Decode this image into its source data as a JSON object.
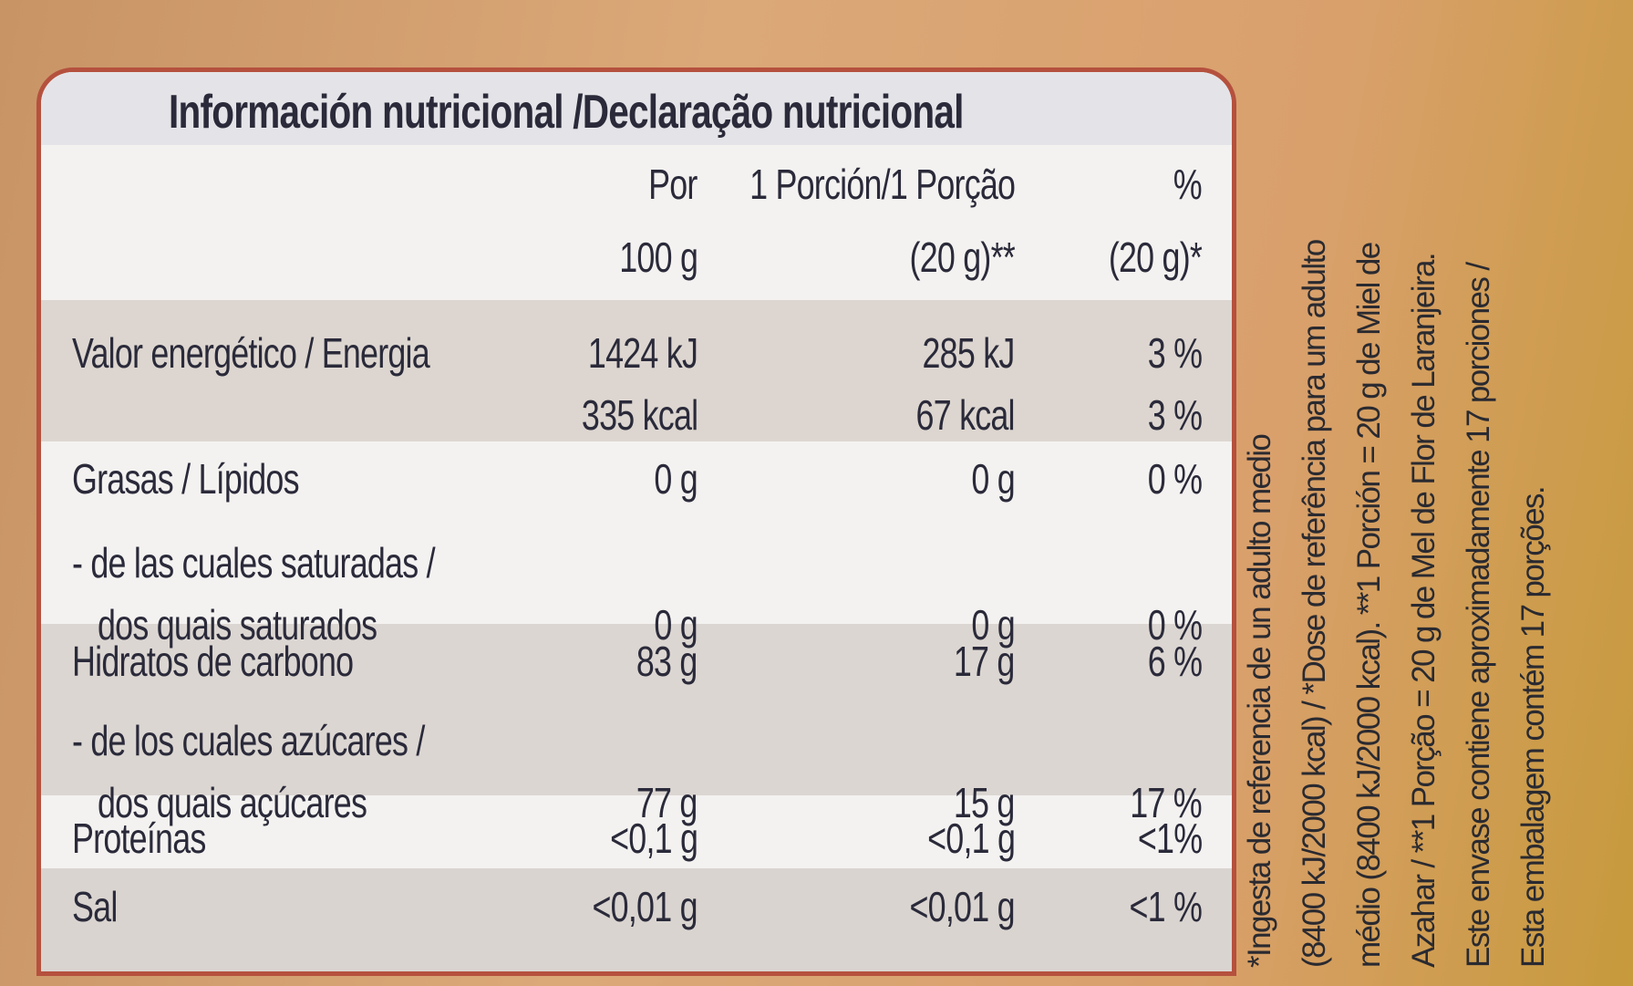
{
  "title": "Información nutricional /Declaração nutricional",
  "header": [
    [
      "Por",
      "100 g"
    ],
    [
      "1 Porción/1 Porção",
      "(20 g)**"
    ],
    [
      "%",
      "(20 g)*"
    ]
  ],
  "rows": [
    {
      "label": [
        "Valor energético / Energia"
      ],
      "cells": [
        [
          "1424 kJ",
          "335 kcal"
        ],
        [
          "285 kJ",
          "67 kcal"
        ],
        [
          "3 %",
          "3 %"
        ]
      ]
    },
    {
      "label": [
        "Grasas / Lípidos"
      ],
      "cells": [
        [
          "0 g"
        ],
        [
          "0 g"
        ],
        [
          "0 %"
        ]
      ]
    },
    {
      "label": [
        "- de las cuales saturadas /",
        "dos quais saturados"
      ],
      "cells": [
        [
          "0 g"
        ],
        [
          "0 g"
        ],
        [
          "0 %"
        ]
      ]
    },
    {
      "label": [
        "Hidratos de carbono"
      ],
      "cells": [
        [
          "83 g"
        ],
        [
          "17 g"
        ],
        [
          "6 %"
        ]
      ]
    },
    {
      "label": [
        "- de los cuales azúcares /",
        "dos quais açúcares"
      ],
      "cells": [
        [
          "77 g"
        ],
        [
          "15 g"
        ],
        [
          "17 %"
        ]
      ]
    },
    {
      "label": [
        "Proteínas"
      ],
      "cells": [
        [
          "<0,1 g"
        ],
        [
          "<0,1 g"
        ],
        [
          "<1%"
        ]
      ]
    },
    {
      "label": [
        "Sal"
      ],
      "cells": [
        [
          "<0,01 g"
        ],
        [
          "<0,01 g"
        ],
        [
          "<1 %"
        ]
      ]
    }
  ],
  "note": [
    "*Ingesta de referencia de un adulto medio",
    "(8400 kJ/2000 kcal) / *Dose de referência para um adulto",
    "médio (8400 kJ/2000 kcal). **1 Porción = 20 g de Miel de",
    "Azahar / **1 Porção = 20 g de Mel de Flor de Laranjeira.",
    "Este envase contiene aproximadamente 17 porciones /",
    "Esta embalagem contém 17 porções."
  ]
}
